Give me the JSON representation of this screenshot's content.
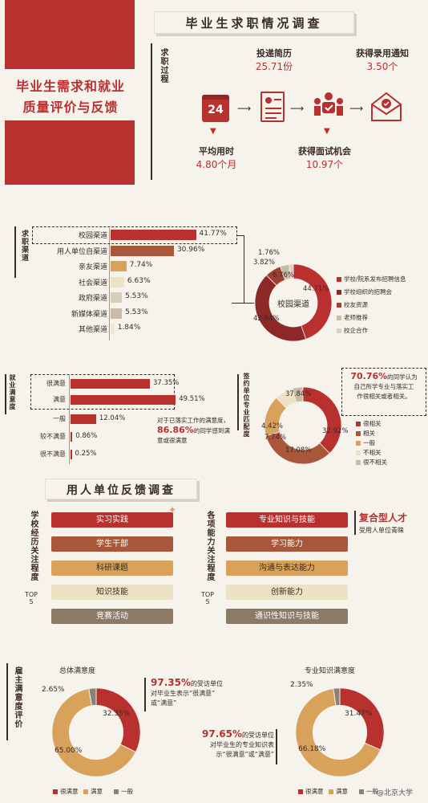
{
  "banner": {
    "line1": "毕业生需求和就业",
    "line2": "质量评价与反馈"
  },
  "survey_title": "毕业生求职情况调查",
  "process": {
    "side_label": "求职过程",
    "calendar_number": "24",
    "resume": {
      "label": "投递简历",
      "value": "25.71份"
    },
    "interview": {
      "label": "获得面试机会",
      "value": "10.97个"
    },
    "offer": {
      "label": "获得录用通知",
      "value": "3.50个"
    },
    "time": {
      "label": "平均用时",
      "value": "4.80个月"
    }
  },
  "channels": {
    "side_label": "求职渠道",
    "items": [
      {
        "label": "校园渠道",
        "value": "41.77%",
        "pct": 41.77,
        "color": "#b8312f"
      },
      {
        "label": "用人单位自渠道",
        "value": "30.96%",
        "pct": 30.96,
        "color": "#a9573b"
      },
      {
        "label": "亲友渠道",
        "value": "7.74%",
        "pct": 7.74,
        "color": "#d9a25a"
      },
      {
        "label": "社会渠道",
        "value": "6.63%",
        "pct": 6.63,
        "color": "#ece3c5"
      },
      {
        "label": "政府渠道",
        "value": "5.53%",
        "pct": 5.53,
        "color": "#d9cdbb"
      },
      {
        "label": "新媒体渠道",
        "value": "5.53%",
        "pct": 5.53,
        "color": "#c9bca6"
      },
      {
        "label": "其他渠道",
        "value": "1.84%",
        "pct": 1.84,
        "color": "#ece5d8"
      }
    ],
    "donut_center": "校园渠道",
    "donut": [
      {
        "name": "学校/院系发布招聘信息",
        "value": 44.71,
        "label": "44.71%",
        "color": "#b8312f"
      },
      {
        "name": "学校组织的招聘会",
        "value": 42.94,
        "label": "42.94%",
        "color": "#8e2826"
      },
      {
        "name": "校友资源",
        "value": 6.76,
        "label": "6.76%",
        "color": "#a14030"
      },
      {
        "name": "老师推荐",
        "value": 3.82,
        "label": "3.82%",
        "color": "#c9bca6"
      },
      {
        "name": "校企合作",
        "value": 1.76,
        "label": "1.76%",
        "color": "#ddd2c0"
      }
    ]
  },
  "satisfaction": {
    "side_label": "就业满意度",
    "items": [
      {
        "label": "很满意",
        "value": "37.35%",
        "pct": 37.35,
        "color": "#b8312f"
      },
      {
        "label": "满意",
        "value": "49.51%",
        "pct": 49.51,
        "color": "#b8312f"
      },
      {
        "label": "一般",
        "value": "12.04%",
        "pct": 12.04,
        "color": "#b8312f"
      },
      {
        "label": "较不满意",
        "value": "0.86%",
        "pct": 0.86,
        "color": "#b8312f"
      },
      {
        "label": "很不满意",
        "value": "0.25%",
        "pct": 0.25,
        "color": "#b8312f"
      }
    ],
    "note_prefix": "对于已落实工作的满意度，",
    "note_value": "86.86%",
    "note_suffix": "的同学感到满意或很满意"
  },
  "match": {
    "side_label": "签约单位专业匹配度",
    "highlight_value": "70.76%",
    "highlight_text1": "的同学认为",
    "highlight_text2": "自己所学专业与落实工",
    "highlight_text3": "作很相关或者相关。",
    "donut": [
      {
        "name": "很相关",
        "value": 37.84,
        "label": "37.84%",
        "color": "#b8312f"
      },
      {
        "name": "相关",
        "value": 32.92,
        "label": "32.92%",
        "color": "#a9573b"
      },
      {
        "name": "一般",
        "value": 17.08,
        "label": "17.08%",
        "color": "#d9a25a"
      },
      {
        "name": "不相关",
        "value": 7.74,
        "label": "7.74%",
        "color": "#ece3c5"
      },
      {
        "name": "很不相关",
        "value": 4.42,
        "label": "4.42%",
        "color": "#c9bca6"
      }
    ]
  },
  "employer": {
    "title": "用人单位反馈调查",
    "left_side": "学校经历关注程度",
    "left_top": "TOP",
    "left_five": "5",
    "left_items": [
      "实习实践",
      "学生干部",
      "科研课题",
      "知识技能",
      "竞赛活动"
    ],
    "right_side": "各项能力关注程度",
    "right_top": "TOP",
    "right_five": "5",
    "right_items": [
      "专业知识与技能",
      "学习能力",
      "沟通与表达能力",
      "创新能力",
      "通识性知识与技能"
    ],
    "callout_title": "复合型人才",
    "callout_sub": "受用人单位青睐"
  },
  "employer_sat": {
    "side_label": "雇主满意度评价",
    "overall_title": "总体满意度",
    "overall": [
      {
        "name": "很满意",
        "value": 32.35,
        "label": "32.35%",
        "color": "#b8312f"
      },
      {
        "name": "满意",
        "value": 65.0,
        "label": "65.00%",
        "color": "#d9a25a"
      },
      {
        "name": "一般",
        "value": 2.65,
        "label": "2.65%",
        "color": "#8a8279"
      }
    ],
    "overall_note_value": "97.35%",
    "overall_note_1": "的受访单位",
    "overall_note_2": "对毕业生表示“很满意”",
    "overall_note_3": "或“满意”",
    "pro_title": "专业知识满意度",
    "pro": [
      {
        "name": "很满意",
        "value": 31.47,
        "label": "31.47%",
        "color": "#b8312f"
      },
      {
        "name": "满意",
        "value": 66.18,
        "label": "66.18%",
        "color": "#d9a25a"
      },
      {
        "name": "一般",
        "value": 2.35,
        "label": "2.35%",
        "color": "#8a8279"
      }
    ],
    "pro_note_value": "97.65%",
    "pro_note_1": "的受访单位",
    "pro_note_2": "对毕业生的专业知识表",
    "pro_note_3": "示“很满意”或“满意”",
    "legend": [
      "很满意",
      "满意",
      "一般"
    ]
  },
  "watermark": "@北京大学"
}
